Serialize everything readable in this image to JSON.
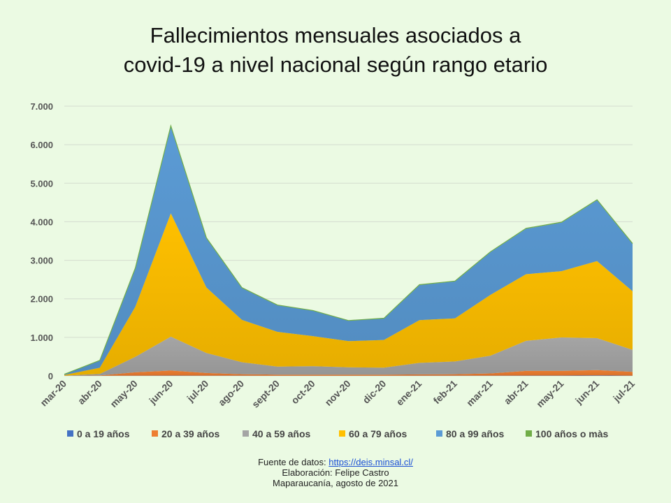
{
  "title": {
    "line1": "Fallecimientos mensuales asociados a",
    "line2": "covid-19 a nivel nacional según rango etario"
  },
  "footer": {
    "source_label": "Fuente de datos:",
    "source_link": "https://deis.minsal.cl/",
    "credit": "Elaboración: Felipe Castro",
    "place_date": "Maparaucanía, agosto de 2021"
  },
  "chart_data": {
    "type": "area",
    "stacked": true,
    "categories": [
      "mar-20",
      "abr-20",
      "may-20",
      "jun-20",
      "jul-20",
      "ago-20",
      "sept-20",
      "oct-20",
      "nov-20",
      "dic-20",
      "ene-21",
      "feb-21",
      "mar-21",
      "abr-21",
      "may-21",
      "jun-21",
      "jul-21"
    ],
    "ylim": [
      0,
      7000
    ],
    "yticks": [
      0,
      1000,
      2000,
      3000,
      4000,
      5000,
      6000,
      7000
    ],
    "ytick_labels": [
      "0",
      "1.000",
      "2.000",
      "3.000",
      "4.000",
      "5.000",
      "6.000",
      "7.000"
    ],
    "grid": true,
    "legend_position": "bottom",
    "series": [
      {
        "name": "0 a 19 años",
        "color": "#4472c4",
        "values": [
          0,
          1,
          3,
          8,
          4,
          3,
          2,
          2,
          2,
          2,
          3,
          3,
          4,
          8,
          8,
          10,
          6
        ]
      },
      {
        "name": "20 a 39 años",
        "color": "#ed7d31",
        "values": [
          1,
          10,
          90,
          130,
          70,
          40,
          30,
          30,
          30,
          30,
          35,
          40,
          60,
          120,
          120,
          140,
          100
        ]
      },
      {
        "name": "40 a 59 años",
        "color": "#a5a5a5",
        "values": [
          5,
          40,
          400,
          880,
          520,
          310,
          210,
          220,
          190,
          180,
          300,
          330,
          460,
          780,
          870,
          830,
          570
        ]
      },
      {
        "name": "60 a 79 años",
        "color": "#ffc000",
        "values": [
          15,
          160,
          1300,
          3200,
          1700,
          1100,
          900,
          780,
          680,
          720,
          1110,
          1120,
          1580,
          1730,
          1720,
          2000,
          1520
        ]
      },
      {
        "name": "80 a 99 años",
        "color": "#5b9bd5",
        "values": [
          20,
          190,
          1000,
          2250,
          1280,
          830,
          690,
          660,
          530,
          560,
          910,
          960,
          1110,
          1180,
          1260,
          1580,
          1230
        ]
      },
      {
        "name": "100 años o màs",
        "color": "#70ad47",
        "values": [
          0,
          1,
          7,
          22,
          12,
          8,
          6,
          6,
          5,
          5,
          8,
          8,
          8,
          12,
          12,
          12,
          10
        ]
      }
    ]
  }
}
